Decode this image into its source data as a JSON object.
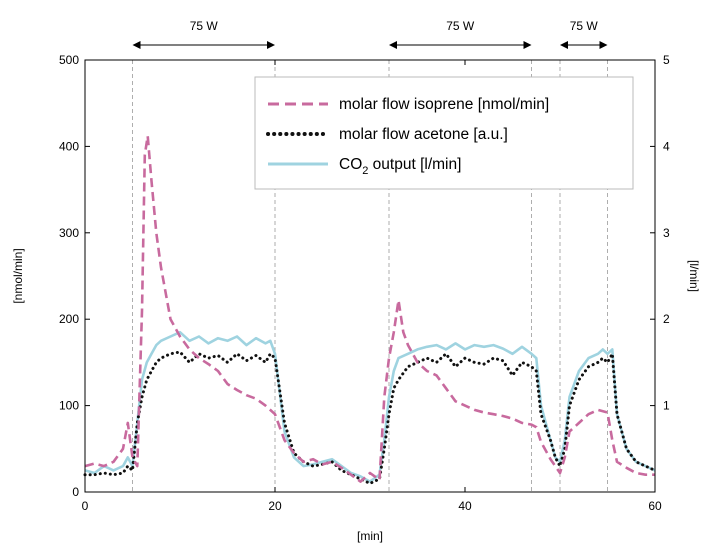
{
  "chart_data": {
    "type": "line",
    "xlabel": "[min]",
    "ylabel_left": "[nmol/min]",
    "ylabel_right": "[l/min]",
    "xlim": [
      0,
      60
    ],
    "ylim_left": [
      0,
      500
    ],
    "ylim_right": [
      0,
      5
    ],
    "x_ticks": [
      0,
      20,
      40,
      60
    ],
    "y_left_ticks": [
      0,
      100,
      200,
      300,
      400,
      500
    ],
    "y_right_ticks": [
      1,
      2,
      3,
      4,
      5
    ],
    "grid": false,
    "legend_position": "top-right",
    "vertical_markers": [
      5,
      20,
      32,
      47,
      50,
      55
    ],
    "annotations": [
      {
        "text": "75 W",
        "x_start": 5,
        "x_end": 20
      },
      {
        "text": "75 W",
        "x_start": 32,
        "x_end": 47
      },
      {
        "text": "75 W",
        "x_start": 50,
        "x_end": 55
      }
    ],
    "colors": {
      "isoprene": "#c86a9e",
      "acetone": "#111111",
      "co2": "#9fd3e0"
    },
    "series": [
      {
        "key": "isoprene",
        "name": "molar flow isoprene [nmol/min]",
        "style": "dashed",
        "axis": "left",
        "x": [
          0,
          1,
          2,
          3,
          4,
          4.5,
          5,
          5.5,
          6,
          6.3,
          6.6,
          7,
          7.5,
          8,
          9,
          10,
          11,
          12,
          13,
          14,
          15,
          16,
          17,
          18,
          19,
          20,
          21,
          22,
          23,
          24,
          25,
          26,
          27,
          28,
          29,
          30,
          31,
          31.5,
          32,
          32.5,
          33,
          33.5,
          34,
          35,
          36,
          37,
          38,
          39,
          40,
          41,
          42,
          43,
          44,
          45,
          46,
          47,
          47.5,
          48,
          49,
          49.5,
          50,
          50.5,
          51,
          52,
          53,
          54,
          55,
          55.5,
          56,
          57,
          58,
          59,
          60
        ],
        "y": [
          30,
          33,
          30,
          35,
          50,
          80,
          40,
          30,
          210,
          390,
          412,
          360,
          300,
          260,
          200,
          180,
          165,
          155,
          148,
          140,
          125,
          118,
          112,
          108,
          100,
          90,
          60,
          45,
          35,
          38,
          32,
          35,
          28,
          20,
          12,
          22,
          14,
          110,
          155,
          185,
          222,
          185,
          170,
          150,
          140,
          135,
          120,
          105,
          100,
          95,
          92,
          90,
          88,
          85,
          80,
          78,
          75,
          58,
          38,
          30,
          22,
          40,
          70,
          80,
          90,
          95,
          92,
          60,
          35,
          28,
          22,
          20,
          20
        ]
      },
      {
        "key": "acetone",
        "name": "molar flow acetone [a.u.]",
        "style": "dotted",
        "axis": "right",
        "x": [
          0,
          1,
          2,
          3,
          4,
          4.5,
          5,
          5.5,
          6,
          6.5,
          7,
          7.5,
          8,
          9,
          10,
          11,
          12,
          13,
          14,
          15,
          16,
          17,
          18,
          19,
          19.5,
          20,
          21,
          22,
          23,
          24,
          25,
          26,
          27,
          28,
          29,
          30,
          31,
          31.5,
          32,
          32.5,
          33,
          34,
          35,
          36,
          37,
          38,
          39,
          40,
          41,
          42,
          43,
          44,
          45,
          46,
          47,
          47.5,
          48,
          49,
          49.5,
          50,
          50.5,
          51,
          52,
          53,
          54,
          54.5,
          55,
          55.5,
          56,
          57,
          58,
          59,
          60
        ],
        "y": [
          0.2,
          0.2,
          0.22,
          0.2,
          0.22,
          0.3,
          0.25,
          0.8,
          1.1,
          1.3,
          1.4,
          1.5,
          1.55,
          1.6,
          1.62,
          1.5,
          1.6,
          1.55,
          1.58,
          1.5,
          1.6,
          1.52,
          1.58,
          1.5,
          1.6,
          1.55,
          0.8,
          0.45,
          0.35,
          0.3,
          0.32,
          0.35,
          0.25,
          0.2,
          0.15,
          0.1,
          0.15,
          0.5,
          0.9,
          1.2,
          1.3,
          1.45,
          1.5,
          1.55,
          1.5,
          1.6,
          1.45,
          1.55,
          1.5,
          1.48,
          1.55,
          1.52,
          1.35,
          1.5,
          1.45,
          1.4,
          0.9,
          0.6,
          0.4,
          0.3,
          0.5,
          1.0,
          1.3,
          1.45,
          1.5,
          1.55,
          1.5,
          1.6,
          0.9,
          0.5,
          0.35,
          0.3,
          0.25
        ]
      },
      {
        "key": "co2",
        "name": "CO2 output [l/min]",
        "style": "solid",
        "axis": "right",
        "x": [
          0,
          1,
          2,
          3,
          4,
          4.5,
          5,
          5.5,
          6,
          6.5,
          7,
          7.5,
          8,
          9,
          10,
          11,
          12,
          13,
          14,
          15,
          16,
          17,
          18,
          19,
          19.5,
          20,
          21,
          22,
          23,
          24,
          25,
          26,
          27,
          28,
          29,
          30,
          31,
          31.5,
          32,
          32.5,
          33,
          34,
          35,
          36,
          37,
          38,
          39,
          40,
          41,
          42,
          43,
          44,
          45,
          46,
          47,
          47.5,
          48,
          49,
          49.5,
          50,
          50.5,
          51,
          52,
          53,
          54,
          54.5,
          55,
          55.5,
          56,
          57,
          58,
          59,
          60
        ],
        "y": [
          0.25,
          0.22,
          0.3,
          0.25,
          0.3,
          0.4,
          0.3,
          0.8,
          1.3,
          1.5,
          1.6,
          1.7,
          1.75,
          1.8,
          1.85,
          1.75,
          1.8,
          1.72,
          1.78,
          1.75,
          1.8,
          1.7,
          1.78,
          1.72,
          1.75,
          1.6,
          0.7,
          0.4,
          0.3,
          0.32,
          0.35,
          0.38,
          0.3,
          0.22,
          0.18,
          0.12,
          0.2,
          0.6,
          1.1,
          1.4,
          1.55,
          1.6,
          1.65,
          1.68,
          1.7,
          1.65,
          1.72,
          1.65,
          1.7,
          1.68,
          1.7,
          1.66,
          1.6,
          1.68,
          1.6,
          1.55,
          1.0,
          0.6,
          0.4,
          0.35,
          0.6,
          1.1,
          1.4,
          1.55,
          1.6,
          1.65,
          1.6,
          1.65,
          0.9,
          0.5,
          0.35,
          0.3,
          0.25
        ]
      }
    ]
  }
}
